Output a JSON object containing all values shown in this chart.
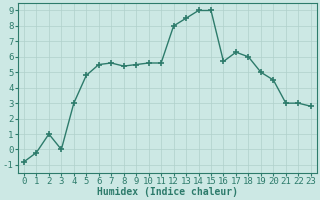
{
  "x": [
    0,
    1,
    2,
    3,
    4,
    5,
    6,
    7,
    8,
    9,
    10,
    11,
    12,
    13,
    14,
    15,
    16,
    17,
    18,
    19,
    20,
    21,
    22,
    23
  ],
  "y": [
    -0.8,
    -0.2,
    1.0,
    0.0,
    3.0,
    4.8,
    5.5,
    5.6,
    5.4,
    5.5,
    5.6,
    5.6,
    8.0,
    8.5,
    9.0,
    9.0,
    5.7,
    6.3,
    6.0,
    5.0,
    4.5,
    3.0,
    3.0,
    2.8
  ],
  "line_color": "#2d7b6b",
  "marker": "+",
  "marker_size": 4,
  "marker_linewidth": 1.2,
  "linewidth": 1.0,
  "bg_color": "#cce8e4",
  "grid_color": "#b0d0cb",
  "xlabel": "Humidex (Indice chaleur)",
  "xlim": [
    -0.5,
    23.5
  ],
  "ylim": [
    -1.5,
    9.5
  ],
  "yticks": [
    -1,
    0,
    1,
    2,
    3,
    4,
    5,
    6,
    7,
    8,
    9
  ],
  "xticks": [
    0,
    1,
    2,
    3,
    4,
    5,
    6,
    7,
    8,
    9,
    10,
    11,
    12,
    13,
    14,
    15,
    16,
    17,
    18,
    19,
    20,
    21,
    22,
    23
  ],
  "xlabel_fontsize": 7,
  "tick_fontsize": 6.5
}
